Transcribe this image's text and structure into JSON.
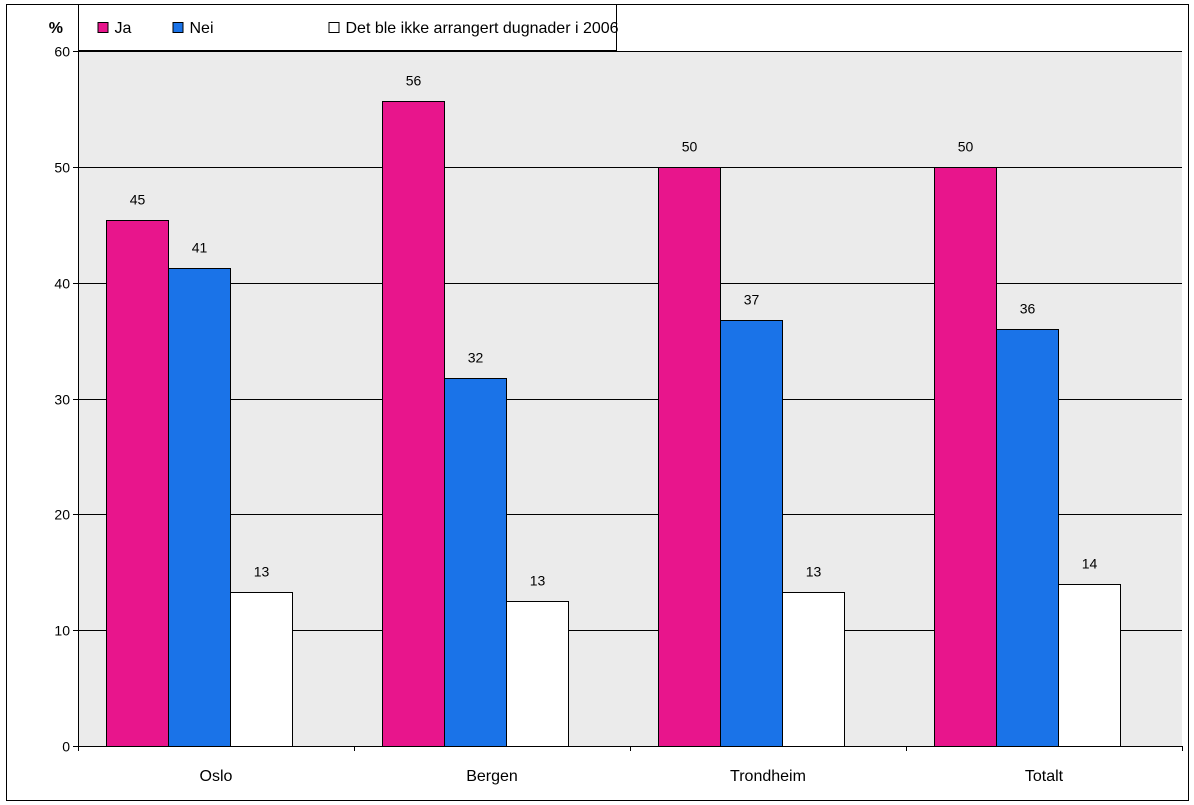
{
  "chart_data": {
    "type": "bar",
    "ylabel": "%",
    "ylim": [
      0,
      60
    ],
    "yticks": [
      0,
      10,
      20,
      30,
      40,
      50,
      60
    ],
    "categories": [
      "Oslo",
      "Bergen",
      "Trondheim",
      "Totalt"
    ],
    "series": [
      {
        "name": "Ja",
        "color": "#e8158c",
        "values": [
          45.4,
          55.7,
          50.0,
          50.0
        ],
        "labels": [
          "45",
          "56",
          "50",
          "50"
        ]
      },
      {
        "name": "Nei",
        "color": "#1a73e8",
        "values": [
          41.3,
          31.8,
          36.8,
          36.0
        ],
        "labels": [
          "41",
          "32",
          "37",
          "36"
        ]
      },
      {
        "name": "Det ble ikke arrangert dugnader i 2006",
        "color": "#ffffff",
        "values": [
          13.3,
          12.5,
          13.3,
          14.0
        ],
        "labels": [
          "13",
          "13",
          "13",
          "14"
        ]
      }
    ],
    "grid": true,
    "plot_background": "#ebebeb",
    "legend_position": "top-left"
  }
}
